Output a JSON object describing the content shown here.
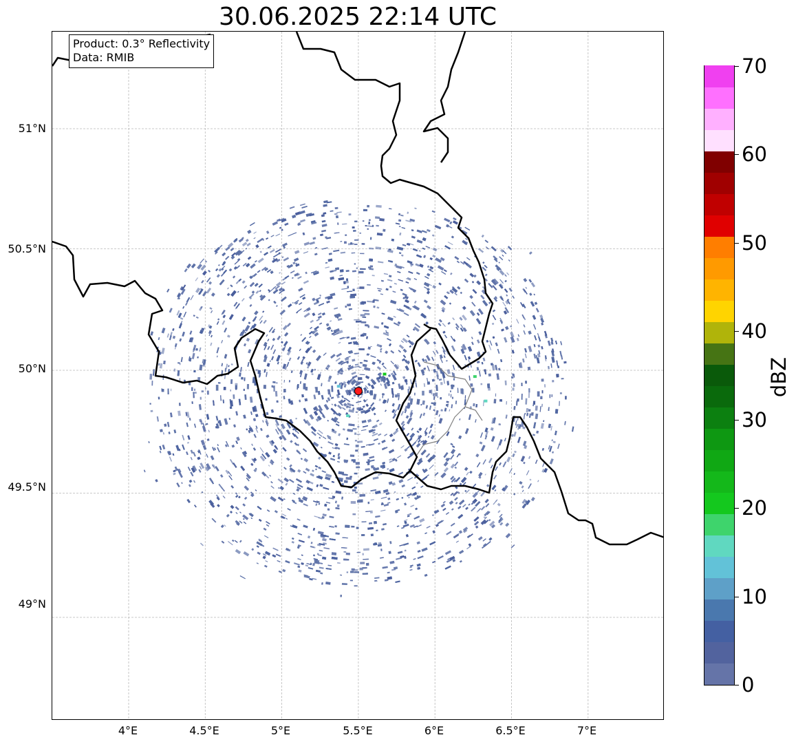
{
  "title": "30.06.2025 22:14 UTC",
  "info": {
    "product": "Product: 0.3° Reflectivity",
    "data": "Data: RMIB"
  },
  "map": {
    "lon_range": [
      3.5,
      7.5
    ],
    "lat_range": [
      48.55,
      51.45
    ],
    "lon_ticks": [
      "4°E",
      "4.5°E",
      "5°E",
      "5.5°E",
      "6°E",
      "6.5°E",
      "7°E"
    ],
    "lat_ticks": [
      "51°N",
      "50.5°N",
      "50°N",
      "49.5°N",
      "49°N"
    ],
    "grid": true,
    "radar_site": {
      "lon": 5.5,
      "lat": 49.915,
      "color": "#ff1a1a"
    },
    "echo_color": "#5a6fa6"
  },
  "colorbar": {
    "label": "dBZ",
    "min": 0,
    "max": 70,
    "ticks": [
      "0",
      "10",
      "20",
      "30",
      "40",
      "50",
      "60",
      "70"
    ],
    "colors": [
      "#6574a8",
      "#52639e",
      "#4460a2",
      "#4a78ae",
      "#5ea0c8",
      "#62c2d8",
      "#60d8c0",
      "#3ed46c",
      "#14c81e",
      "#14b81a",
      "#10a814",
      "#0e9812",
      "#0c8010",
      "#0a6a0c",
      "#0a5a0a",
      "#467414",
      "#b0b40a",
      "#ffd400",
      "#ffb400",
      "#ff9a00",
      "#ff7e00",
      "#e00000",
      "#c00000",
      "#a00000",
      "#800000",
      "#ffe0ff",
      "#ffb0ff",
      "#ff70ff",
      "#f040f0"
    ]
  }
}
